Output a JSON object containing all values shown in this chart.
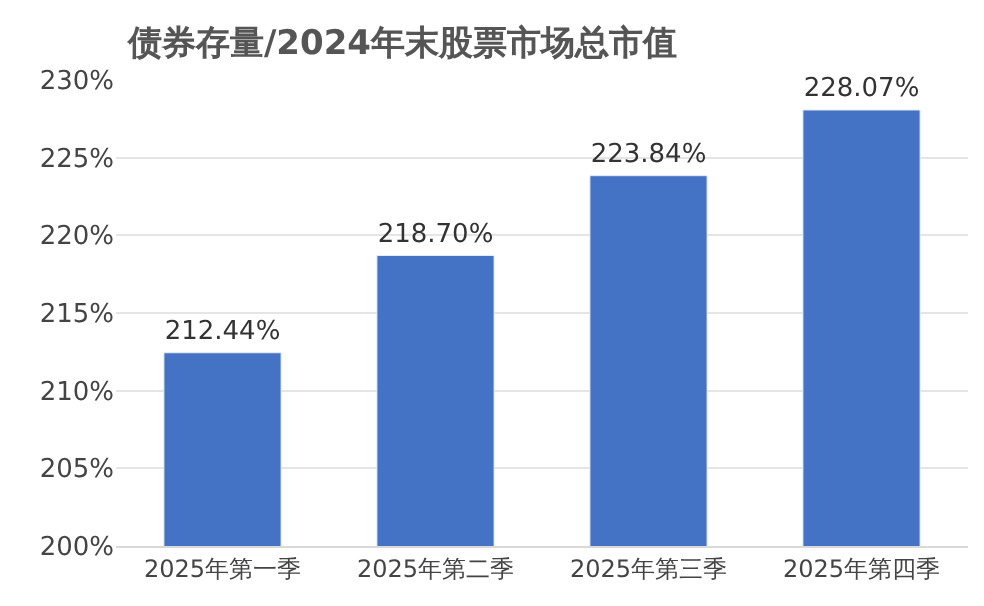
{
  "chart_data": {
    "type": "bar",
    "title": "债券存量/2024年末股票市场总市值",
    "categories": [
      "2025年第一季",
      "2025年第二季",
      "2025年第三季",
      "2025年第四季"
    ],
    "values": [
      212.44,
      218.7,
      223.84,
      228.07
    ],
    "value_labels": [
      "212.44%",
      "218.70%",
      "223.84%",
      "228.07%"
    ],
    "color": "#4472c4",
    "ylim": [
      200,
      230
    ],
    "yticks": [
      {
        "value": 200,
        "label": "200%"
      },
      {
        "value": 205,
        "label": "205%"
      },
      {
        "value": 210,
        "label": "210%"
      },
      {
        "value": 215,
        "label": "215%"
      },
      {
        "value": 220,
        "label": "220%"
      },
      {
        "value": 225,
        "label": "225%"
      },
      {
        "value": 230,
        "label": "230%"
      }
    ],
    "grid": "y",
    "legend": false
  }
}
